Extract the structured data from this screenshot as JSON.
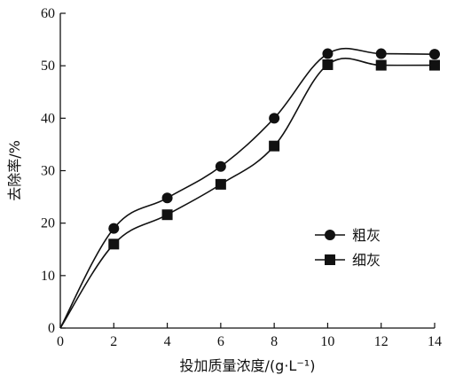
{
  "chart_data": {
    "type": "line",
    "xlabel": "投加质量浓度/(g·L⁻¹)",
    "ylabel": "去除率/%",
    "xlim": [
      0,
      14
    ],
    "ylim": [
      0,
      60
    ],
    "xticks": [
      "0",
      "2",
      "4",
      "6",
      "8",
      "10",
      "12",
      "14"
    ],
    "yticks": [
      "0",
      "10",
      "20",
      "30",
      "40",
      "50",
      "60"
    ],
    "grid": false,
    "legend_position": "right-middle",
    "series": [
      {
        "name": "粗灰",
        "marker": "circle",
        "x": [
          0,
          2,
          4,
          6,
          8,
          10,
          12,
          14
        ],
        "values": [
          0,
          19,
          24.8,
          30.8,
          40,
          52.3,
          52.3,
          52.2
        ]
      },
      {
        "name": "细灰",
        "marker": "square",
        "x": [
          0,
          2,
          4,
          6,
          8,
          10,
          12,
          14
        ],
        "values": [
          0,
          16,
          21.6,
          27.4,
          34.7,
          50.2,
          50.1,
          50.1
        ]
      }
    ],
    "colors": {
      "line": "#111111",
      "marker": "#111111"
    }
  }
}
